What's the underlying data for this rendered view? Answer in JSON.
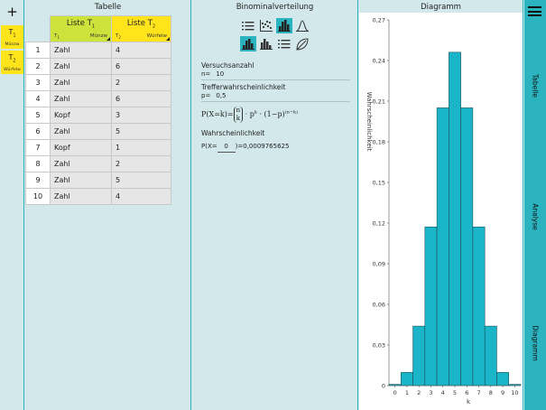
{
  "left_tabs": {
    "add_label": "+",
    "tab1": {
      "name": "T",
      "sub": "1",
      "short": "Münzw"
    },
    "tab2": {
      "name": "T",
      "sub": "2",
      "short": "Würfelw"
    }
  },
  "table_panel": {
    "title": "Tabelle",
    "col1": {
      "name": "Liste T",
      "name_sub": "1",
      "var": "T",
      "var_sub": "1",
      "short": "Münzw"
    },
    "col2": {
      "name": "Liste T",
      "name_sub": "2",
      "var": "T",
      "var_sub": "2",
      "short": "Würfelw"
    },
    "rows": [
      {
        "n": "1",
        "a": "Zahl",
        "b": "4"
      },
      {
        "n": "2",
        "a": "Zahl",
        "b": "6"
      },
      {
        "n": "3",
        "a": "Zahl",
        "b": "2"
      },
      {
        "n": "4",
        "a": "Zahl",
        "b": "6"
      },
      {
        "n": "5",
        "a": "Kopf",
        "b": "3"
      },
      {
        "n": "6",
        "a": "Zahl",
        "b": "5"
      },
      {
        "n": "7",
        "a": "Kopf",
        "b": "1"
      },
      {
        "n": "8",
        "a": "Zahl",
        "b": "2"
      },
      {
        "n": "9",
        "a": "Zahl",
        "b": "5"
      },
      {
        "n": "10",
        "a": "Zahl",
        "b": "4"
      }
    ]
  },
  "binom_panel": {
    "title": "Binominalverteilung",
    "icons": [
      "list-icon",
      "scatter-icon",
      "histogram-icon",
      "bell-curve-icon",
      "histogram-filled-icon",
      "histogram-alt-icon",
      "list-alt-icon",
      "leaf-icon"
    ],
    "trials_label": "Versuchsanzahl",
    "n_prefix": "n=",
    "n_value": "10",
    "prob_label": "Trefferwahrscheinlichkeit",
    "p_prefix": "p=",
    "p_value": "0,5",
    "formula": {
      "lhs": "P(X=k)=",
      "binom_top": "n",
      "binom_bottom": "k",
      "mid": "· p",
      "exp_k": "k",
      "rest": "· (1−p)",
      "exp_nk": "(n−k)"
    },
    "result_label": "Wahrscheinlichkeit",
    "result_prefix": "P(X=",
    "result_k": "0",
    "result_suffix": ")=",
    "result_value": "0,0009765625"
  },
  "chart_panel": {
    "title": "Diagramm"
  },
  "chart_data": {
    "type": "bar",
    "title": "",
    "xlabel": "k",
    "ylabel": "Wahrscheinlichkeit",
    "categories": [
      "0",
      "1",
      "2",
      "3",
      "4",
      "5",
      "6",
      "7",
      "8",
      "9",
      "10"
    ],
    "values": [
      0.0009765625,
      0.009765625,
      0.0439453125,
      0.1171875,
      0.205078125,
      0.24609375,
      0.205078125,
      0.1171875,
      0.0439453125,
      0.009765625,
      0.0009765625
    ],
    "ylim": [
      0,
      0.27
    ],
    "yticks": [
      "0",
      "0,03",
      "0,06",
      "0,09",
      "0,12",
      "0,15",
      "0,18",
      "0,21",
      "0,24",
      "0,27"
    ],
    "xticks": [
      "0",
      "1",
      "2",
      "3",
      "4",
      "5",
      "6",
      "7",
      "8",
      "9",
      "10"
    ],
    "bar_color": "#1bb5c9",
    "grid": false
  },
  "right_bar": {
    "menu": "menu-icon",
    "labels": [
      "Tabelle",
      "Analyse",
      "Diagramm"
    ]
  },
  "colors": {
    "accent": "#2bb3bf",
    "yellow": "#ffe41c",
    "green": "#cde23a",
    "background": "#d3e8ea"
  }
}
